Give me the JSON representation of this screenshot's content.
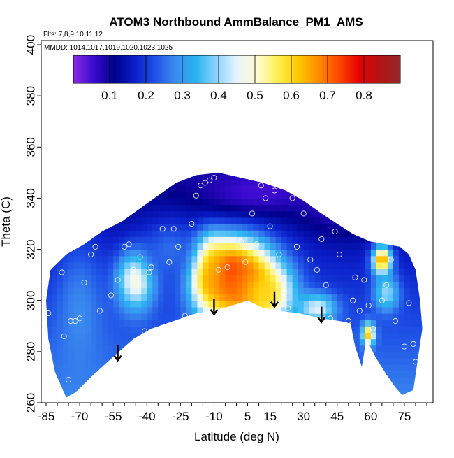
{
  "chart_data": {
    "type": "heatmap",
    "title": "ATOM3 Northbound AmmBalance_PM1_AMS",
    "notes": [
      "Flts: 7,8,9,10,11,12",
      "MMDD: 1014,1017,1019,1020,1023,1025"
    ],
    "xlabel": "Latitude (deg N)",
    "ylabel": "Theta (C)",
    "xlim": [
      -85,
      85
    ],
    "ylim": [
      260,
      400
    ],
    "xticks": [
      -85,
      -70,
      -55,
      -40,
      -25,
      -10,
      5,
      15,
      30,
      45,
      60,
      75
    ],
    "xtick_labels": [
      "-85",
      "-70",
      "-55",
      "-40",
      "-25",
      "-10",
      "5",
      "15",
      "30",
      "45",
      "60",
      "75"
    ],
    "yticks": [
      260,
      280,
      300,
      320,
      340,
      360,
      380,
      400
    ],
    "ytick_labels": [
      "260",
      "280",
      "300",
      "320",
      "340",
      "360",
      "380",
      "400"
    ],
    "colorbar": {
      "range": [
        0,
        0.9
      ],
      "ticks": [
        0.1,
        0.2,
        0.3,
        0.4,
        0.5,
        0.6,
        0.7,
        0.8
      ],
      "tick_labels": [
        "0.1",
        "0.2",
        "0.3",
        "0.4",
        "0.5",
        "0.6",
        "0.7",
        "0.8"
      ],
      "colors": [
        "#8a2be2",
        "#3a0ad0",
        "#00008b",
        "#0a1ec8",
        "#1e50e6",
        "#3c8cf0",
        "#28b4f0",
        "#8cd2ff",
        "#e6f5ff",
        "#fffad2",
        "#fff050",
        "#ffc800",
        "#ff8c00",
        "#ff4600",
        "#e60000",
        "#b41414",
        "#962828"
      ]
    },
    "data_envelope": [
      [
        -76,
        262
      ],
      [
        -72,
        264
      ],
      [
        -65,
        270
      ],
      [
        -55,
        278
      ],
      [
        -46,
        285
      ],
      [
        -38,
        289
      ],
      [
        -28,
        292
      ],
      [
        -18,
        295
      ],
      [
        -10,
        296
      ],
      [
        -2,
        298
      ],
      [
        5,
        300
      ],
      [
        12,
        297
      ],
      [
        18,
        296
      ],
      [
        28,
        295
      ],
      [
        38,
        293
      ],
      [
        46,
        292
      ],
      [
        51,
        291
      ],
      [
        53,
        282
      ],
      [
        56,
        274
      ],
      [
        58,
        285
      ],
      [
        62,
        278
      ],
      [
        67,
        271
      ],
      [
        71,
        266
      ],
      [
        74,
        263
      ],
      [
        79,
        265
      ],
      [
        81,
        277
      ],
      [
        83,
        289
      ],
      [
        82,
        300
      ],
      [
        80,
        312
      ],
      [
        77,
        318
      ],
      [
        73,
        321
      ],
      [
        67,
        322
      ],
      [
        60,
        323
      ],
      [
        52,
        326
      ],
      [
        45,
        330
      ],
      [
        38,
        334
      ],
      [
        30,
        339
      ],
      [
        22,
        343
      ],
      [
        12,
        346
      ],
      [
        2,
        348
      ],
      [
        -8,
        350
      ],
      [
        -18,
        349
      ],
      [
        -27,
        346
      ],
      [
        -35,
        341
      ],
      [
        -43,
        336
      ],
      [
        -51,
        331
      ],
      [
        -60,
        327
      ],
      [
        -68,
        322
      ],
      [
        -76,
        318
      ],
      [
        -83,
        312
      ],
      [
        -85,
        300
      ],
      [
        -84,
        285
      ],
      [
        -81,
        272
      ]
    ],
    "hotspots": [
      {
        "lat": -3,
        "theta": 310,
        "value": 0.82,
        "sx": 9,
        "sy": 9
      },
      {
        "lat": 4,
        "theta": 306,
        "value": 0.72,
        "sx": 12,
        "sy": 11
      },
      {
        "lat": -12,
        "theta": 311,
        "value": 0.66,
        "sx": 5,
        "sy": 9
      },
      {
        "lat": 13,
        "theta": 303,
        "value": 0.6,
        "sx": 7,
        "sy": 6
      },
      {
        "lat": -45,
        "theta": 308,
        "value": 0.5,
        "sx": 6,
        "sy": 8
      },
      {
        "lat": 36,
        "theta": 297,
        "value": 0.45,
        "sx": 6,
        "sy": 4
      },
      {
        "lat": 65,
        "theta": 316,
        "value": 0.68,
        "sx": 3,
        "sy": 4
      },
      {
        "lat": 59,
        "theta": 287,
        "value": 0.62,
        "sx": 2,
        "sy": 3
      },
      {
        "lat": 67,
        "theta": 303,
        "value": 0.4,
        "sx": 4,
        "sy": 5
      },
      {
        "lat": 50,
        "theta": 338,
        "value": 0.05,
        "sx": 14,
        "sy": 8
      },
      {
        "lat": 10,
        "theta": 343,
        "value": 0.05,
        "sx": 18,
        "sy": 6
      },
      {
        "lat": -30,
        "theta": 320,
        "value": 0.25,
        "sx": 8,
        "sy": 8
      },
      {
        "lat": -70,
        "theta": 295,
        "value": 0.28,
        "sx": 8,
        "sy": 20
      }
    ],
    "background_value": 0.2,
    "observations": [
      [
        -84,
        295
      ],
      [
        -78,
        311
      ],
      [
        -77,
        286
      ],
      [
        -75,
        269
      ],
      [
        -74,
        292
      ],
      [
        -72,
        292
      ],
      [
        -70,
        293
      ],
      [
        -68,
        307
      ],
      [
        -65,
        318
      ],
      [
        -63,
        321
      ],
      [
        -61,
        296
      ],
      [
        -56,
        302
      ],
      [
        -53,
        308
      ],
      [
        -50,
        321
      ],
      [
        -48,
        322
      ],
      [
        -46,
        312
      ],
      [
        -43,
        317
      ],
      [
        -41,
        288
      ],
      [
        -39,
        311
      ],
      [
        -38,
        313
      ],
      [
        -36,
        287
      ],
      [
        -33,
        328
      ],
      [
        -30,
        315
      ],
      [
        -28,
        328
      ],
      [
        -26,
        321
      ],
      [
        -23,
        294
      ],
      [
        -20,
        330
      ],
      [
        -18,
        341
      ],
      [
        -16,
        345
      ],
      [
        -14,
        346
      ],
      [
        -12,
        347
      ],
      [
        -10,
        348
      ],
      [
        -8,
        312
      ],
      [
        -4,
        313
      ],
      [
        -2,
        297
      ],
      [
        2,
        323
      ],
      [
        4,
        315
      ],
      [
        7,
        334
      ],
      [
        9,
        322
      ],
      [
        11,
        345
      ],
      [
        13,
        340
      ],
      [
        15,
        329
      ],
      [
        17,
        343
      ],
      [
        19,
        318
      ],
      [
        21,
        303
      ],
      [
        23,
        297
      ],
      [
        25,
        340
      ],
      [
        27,
        321
      ],
      [
        30,
        334
      ],
      [
        33,
        316
      ],
      [
        36,
        312
      ],
      [
        38,
        324
      ],
      [
        40,
        306
      ],
      [
        42,
        293
      ],
      [
        44,
        327
      ],
      [
        46,
        318
      ],
      [
        48,
        286
      ],
      [
        50,
        292
      ],
      [
        52,
        300
      ],
      [
        53,
        309
      ],
      [
        55,
        296
      ],
      [
        57,
        308
      ],
      [
        59,
        298
      ],
      [
        61,
        289
      ],
      [
        63,
        274
      ],
      [
        65,
        300
      ],
      [
        67,
        306
      ],
      [
        69,
        316
      ],
      [
        71,
        292
      ],
      [
        73,
        260
      ],
      [
        75,
        282
      ],
      [
        77,
        299
      ],
      [
        79,
        283
      ],
      [
        80,
        276
      ]
    ],
    "arrows": [
      {
        "lat": -53,
        "theta": 282
      },
      {
        "lat": -10,
        "theta": 300
      },
      {
        "lat": 17,
        "theta": 303
      },
      {
        "lat": 38,
        "theta": 297
      }
    ]
  }
}
